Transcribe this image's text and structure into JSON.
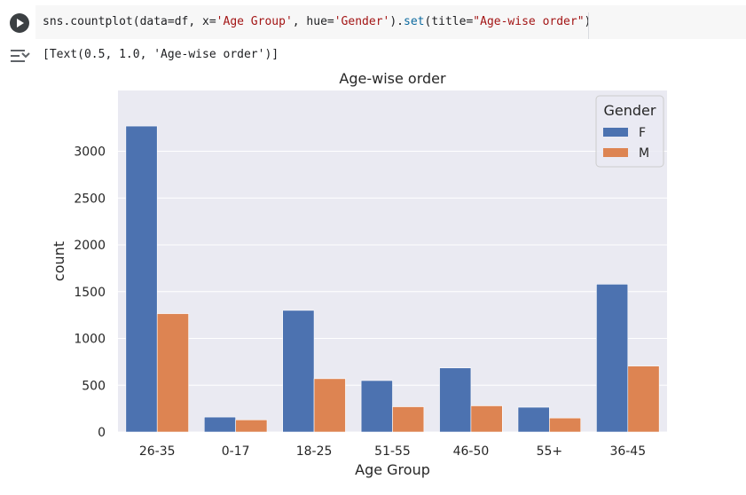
{
  "cell": {
    "code_parts": [
      {
        "text": "sns.countplot(data=df, x=",
        "cls": "tok-plain"
      },
      {
        "text": "'Age Group'",
        "cls": "tok-str"
      },
      {
        "text": ", hue=",
        "cls": "tok-plain"
      },
      {
        "text": "'Gender'",
        "cls": "tok-str"
      },
      {
        "text": ").",
        "cls": "tok-plain"
      },
      {
        "text": "set",
        "cls": "tok-fn"
      },
      {
        "text": "(title=",
        "cls": "tok-plain"
      },
      {
        "text": "\"Age-wise order\"",
        "cls": "tok-str"
      },
      {
        "text": ")",
        "cls": "tok-plain"
      }
    ],
    "output_text": "[Text(0.5, 1.0, 'Age-wise order')]"
  },
  "chart_data": {
    "type": "bar",
    "title": "Age-wise order",
    "xlabel": "Age Group",
    "ylabel": "count",
    "categories": [
      "26-35",
      "0-17",
      "18-25",
      "51-55",
      "46-50",
      "55+",
      "36-45"
    ],
    "series": [
      {
        "name": "F",
        "color": "#4c72b0",
        "values": [
          3270,
          160,
          1300,
          550,
          685,
          265,
          1580
        ]
      },
      {
        "name": "M",
        "color": "#dd8452",
        "values": [
          1265,
          130,
          570,
          270,
          280,
          150,
          705
        ]
      }
    ],
    "ylim": [
      0,
      3650
    ],
    "yticks": [
      0,
      500,
      1000,
      1500,
      2000,
      2500,
      3000
    ],
    "legend_title": "Gender",
    "legend_position": "top-right",
    "grid": true,
    "background": "#eaeaf2"
  }
}
